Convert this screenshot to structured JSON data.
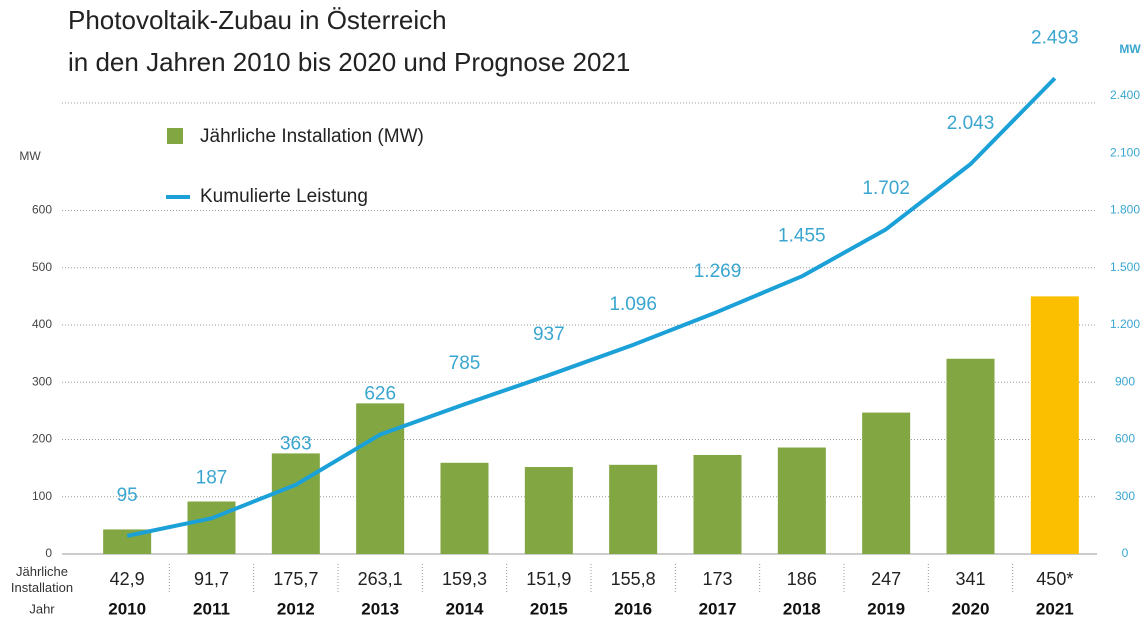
{
  "chart_data": {
    "type": "combo",
    "title": "Photovoltaik-Zubau in Österreich",
    "subtitle": "in den Jahren 2010 bis 2020 und Prognose 2021",
    "ylabel": "MW",
    "y2label": "MW",
    "row_labels": {
      "values": "Jährliche Installation",
      "categories": "Jahr"
    },
    "categories": [
      "2010",
      "2011",
      "2012",
      "2013",
      "2014",
      "2015",
      "2016",
      "2017",
      "2018",
      "2019",
      "2020",
      "2021"
    ],
    "series": [
      {
        "name": "Jährliche Installation (MW)",
        "type": "bar",
        "colors": [
          "#82a641",
          "#82a641",
          "#82a641",
          "#82a641",
          "#82a641",
          "#82a641",
          "#82a641",
          "#82a641",
          "#82a641",
          "#82a641",
          "#82a641",
          "#fbbf00"
        ],
        "values": [
          42.9,
          91.7,
          175.7,
          263.1,
          159.3,
          151.9,
          155.8,
          173,
          186,
          247,
          341,
          450
        ],
        "value_labels": [
          "42,9",
          "91,7",
          "175,7",
          "263,1",
          "159,3",
          "151,9",
          "155,8",
          "173",
          "186",
          "247",
          "341",
          "450*"
        ]
      },
      {
        "name": "Kumulierte Leistung",
        "type": "line",
        "axis": "y2",
        "color": "#1ba1d8",
        "values": [
          95,
          187,
          363,
          626,
          785,
          937,
          1096,
          1269,
          1455,
          1702,
          2043,
          2493
        ],
        "value_labels": [
          "95",
          "187",
          "363",
          "626",
          "785",
          "937",
          "1.096",
          "1.269",
          "1.455",
          "1.702",
          "2.043",
          "2.493"
        ]
      }
    ],
    "ylim": [
      0,
      800
    ],
    "yticks": [
      0,
      100,
      200,
      300,
      400,
      500,
      600
    ],
    "y2lim": [
      0,
      2400
    ],
    "y2ticks": [
      0,
      300,
      600,
      900,
      {
        "value": 1200,
        "label": "1.200"
      },
      {
        "value": 1500,
        "label": "1.500"
      },
      {
        "value": 1800,
        "label": "1.800"
      },
      {
        "value": 2100,
        "label": "2.100"
      },
      {
        "value": 2400,
        "label": "2.400"
      }
    ],
    "grid": true
  }
}
